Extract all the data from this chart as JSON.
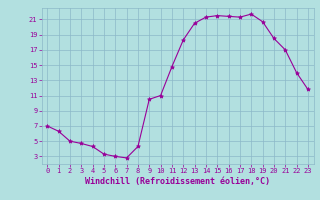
{
  "x": [
    0,
    1,
    2,
    3,
    4,
    5,
    6,
    7,
    8,
    9,
    10,
    11,
    12,
    13,
    14,
    15,
    16,
    17,
    18,
    19,
    20,
    21,
    22,
    23
  ],
  "y": [
    7,
    6.3,
    5,
    4.7,
    4.3,
    3.3,
    3,
    2.8,
    4.3,
    10.5,
    11,
    14.8,
    18.3,
    20.5,
    21.3,
    21.5,
    21.4,
    21.3,
    21.7,
    20.7,
    18.5,
    17,
    14,
    11.8
  ],
  "line_color": "#990099",
  "marker": "*",
  "marker_size": 3,
  "bg_color": "#b2e0e0",
  "grid_color": "#8cb8c8",
  "xlabel": "Windchill (Refroidissement éolien,°C)",
  "xlabel_color": "#990099",
  "xlim_min": -0.5,
  "xlim_max": 23.5,
  "ylim_min": 2,
  "ylim_max": 22.5,
  "yticks": [
    3,
    5,
    7,
    9,
    11,
    13,
    15,
    17,
    19,
    21
  ],
  "xticks": [
    0,
    1,
    2,
    3,
    4,
    5,
    6,
    7,
    8,
    9,
    10,
    11,
    12,
    13,
    14,
    15,
    16,
    17,
    18,
    19,
    20,
    21,
    22,
    23
  ],
  "tick_color": "#990099",
  "tick_fontsize": 5,
  "xlabel_fontsize": 6
}
